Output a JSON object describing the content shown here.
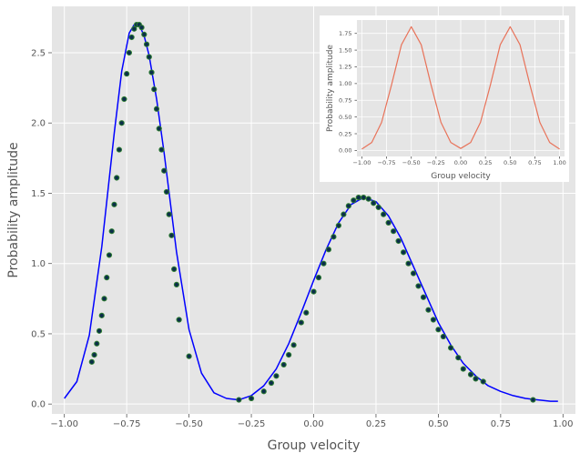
{
  "chart_data": [
    {
      "type": "line",
      "role": "main",
      "title": "",
      "xlabel": "Group velocity",
      "ylabel": "Probability amplitude",
      "xlim": [
        -1.05,
        1.05
      ],
      "ylim": [
        -0.07,
        2.83
      ],
      "xticks": [
        -1.0,
        -0.75,
        -0.5,
        -0.25,
        0.0,
        0.25,
        0.5,
        0.75,
        1.0
      ],
      "xtick_labels": [
        "−1.00",
        "−0.75",
        "−0.50",
        "−0.25",
        "0.00",
        "0.25",
        "0.50",
        "0.75",
        "1.00"
      ],
      "yticks": [
        0.0,
        0.5,
        1.0,
        1.5,
        2.0,
        2.5
      ],
      "ytick_labels": [
        "0.0",
        "0.5",
        "1.0",
        "1.5",
        "2.0",
        "2.5"
      ],
      "grid": true,
      "background": "#e5e5e5",
      "series": [
        {
          "kind": "line",
          "color": "#0000ff",
          "x": [
            -1.0,
            -0.95,
            -0.9,
            -0.85,
            -0.8,
            -0.77,
            -0.74,
            -0.72,
            -0.7,
            -0.68,
            -0.66,
            -0.63,
            -0.6,
            -0.55,
            -0.5,
            -0.45,
            -0.4,
            -0.35,
            -0.3,
            -0.25,
            -0.2,
            -0.15,
            -0.1,
            -0.05,
            0.0,
            0.05,
            0.1,
            0.15,
            0.2,
            0.25,
            0.3,
            0.35,
            0.4,
            0.45,
            0.5,
            0.55,
            0.6,
            0.65,
            0.7,
            0.75,
            0.8,
            0.85,
            0.9,
            0.95,
            0.98
          ],
          "y": [
            0.04,
            0.16,
            0.49,
            1.12,
            1.93,
            2.37,
            2.64,
            2.7,
            2.7,
            2.62,
            2.48,
            2.17,
            1.79,
            1.08,
            0.53,
            0.22,
            0.08,
            0.04,
            0.03,
            0.06,
            0.13,
            0.25,
            0.43,
            0.65,
            0.88,
            1.1,
            1.29,
            1.42,
            1.47,
            1.44,
            1.34,
            1.18,
            0.98,
            0.78,
            0.58,
            0.42,
            0.29,
            0.2,
            0.13,
            0.09,
            0.06,
            0.04,
            0.03,
            0.02,
            0.02
          ]
        },
        {
          "kind": "scatter",
          "color": "#2e7d32",
          "edge_color": "#0b2e4a",
          "x": [
            -0.89,
            -0.88,
            -0.87,
            -0.86,
            -0.85,
            -0.84,
            -0.83,
            -0.82,
            -0.81,
            -0.8,
            -0.79,
            -0.78,
            -0.77,
            -0.76,
            -0.75,
            -0.74,
            -0.73,
            -0.72,
            -0.71,
            -0.7,
            -0.69,
            -0.68,
            -0.67,
            -0.66,
            -0.65,
            -0.64,
            -0.63,
            -0.62,
            -0.61,
            -0.6,
            -0.59,
            -0.58,
            -0.57,
            -0.56,
            -0.55,
            -0.54,
            -0.5,
            -0.3,
            -0.25,
            -0.2,
            -0.17,
            -0.15,
            -0.12,
            -0.1,
            -0.08,
            -0.05,
            -0.03,
            0.0,
            0.02,
            0.04,
            0.06,
            0.08,
            0.1,
            0.12,
            0.14,
            0.16,
            0.18,
            0.2,
            0.22,
            0.24,
            0.26,
            0.28,
            0.3,
            0.32,
            0.34,
            0.36,
            0.38,
            0.4,
            0.42,
            0.44,
            0.46,
            0.48,
            0.5,
            0.52,
            0.55,
            0.58,
            0.6,
            0.63,
            0.65,
            0.68,
            0.88
          ],
          "y": [
            0.3,
            0.35,
            0.43,
            0.52,
            0.63,
            0.75,
            0.9,
            1.06,
            1.23,
            1.42,
            1.61,
            1.81,
            2.0,
            2.17,
            2.35,
            2.5,
            2.61,
            2.67,
            2.7,
            2.7,
            2.68,
            2.63,
            2.56,
            2.47,
            2.36,
            2.24,
            2.1,
            1.96,
            1.81,
            1.66,
            1.51,
            1.35,
            1.2,
            0.96,
            0.85,
            0.6,
            0.34,
            0.03,
            0.04,
            0.09,
            0.15,
            0.2,
            0.28,
            0.35,
            0.42,
            0.58,
            0.65,
            0.8,
            0.9,
            1.0,
            1.1,
            1.19,
            1.27,
            1.35,
            1.41,
            1.45,
            1.47,
            1.47,
            1.46,
            1.43,
            1.4,
            1.35,
            1.29,
            1.23,
            1.16,
            1.08,
            1.0,
            0.93,
            0.84,
            0.76,
            0.67,
            0.6,
            0.53,
            0.48,
            0.4,
            0.33,
            0.25,
            0.21,
            0.18,
            0.16,
            0.03
          ]
        }
      ]
    },
    {
      "type": "line",
      "role": "inset",
      "title": "",
      "xlabel": "Group velocity",
      "ylabel": "Probability amplitude",
      "xlim": [
        -1.05,
        1.05
      ],
      "ylim": [
        -0.09,
        1.95
      ],
      "xticks": [
        -1.0,
        -0.75,
        -0.5,
        -0.25,
        0.0,
        0.25,
        0.5,
        0.75,
        1.0
      ],
      "xtick_labels": [
        "−1.00",
        "−0.75",
        "−0.50",
        "−0.25",
        "0.00",
        "0.25",
        "0.50",
        "0.75",
        "1.00"
      ],
      "yticks": [
        0.0,
        0.25,
        0.5,
        0.75,
        1.0,
        1.25,
        1.5,
        1.75
      ],
      "ytick_labels": [
        "0.00",
        "0.25",
        "0.50",
        "0.75",
        "1.00",
        "1.25",
        "1.50",
        "1.75"
      ],
      "grid": true,
      "background": "#e5e5e5",
      "series": [
        {
          "kind": "line",
          "color": "#e8735a",
          "x": [
            -1.0,
            -0.9,
            -0.8,
            -0.7,
            -0.6,
            -0.5,
            -0.4,
            -0.3,
            -0.2,
            -0.1,
            0.0,
            0.1,
            0.2,
            0.3,
            0.4,
            0.5,
            0.6,
            0.7,
            0.8,
            0.9,
            1.0
          ],
          "y": [
            0.02,
            0.12,
            0.42,
            0.98,
            1.58,
            1.85,
            1.58,
            0.98,
            0.42,
            0.12,
            0.03,
            0.12,
            0.42,
            0.98,
            1.58,
            1.85,
            1.58,
            0.98,
            0.42,
            0.12,
            0.02
          ]
        }
      ]
    }
  ]
}
